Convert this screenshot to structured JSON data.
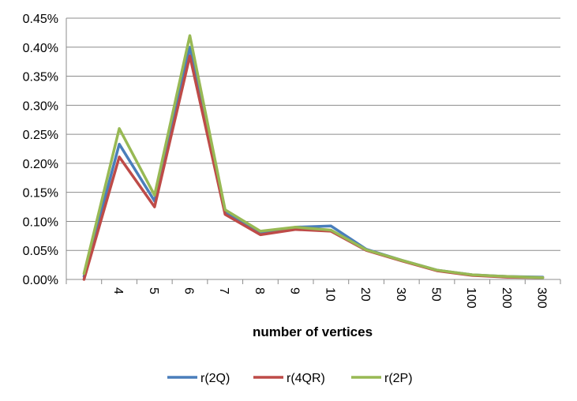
{
  "chart_data": {
    "type": "line",
    "title": "",
    "xlabel": "number of vertices",
    "ylabel": "",
    "categories": [
      "",
      "4",
      "5",
      "6",
      "7",
      "8",
      "9",
      "10",
      "20",
      "30",
      "50",
      "100",
      "200",
      "300"
    ],
    "ylim": [
      0,
      0.45
    ],
    "yticks": [
      "0.00%",
      "0.05%",
      "0.10%",
      "0.15%",
      "0.20%",
      "0.25%",
      "0.30%",
      "0.35%",
      "0.40%",
      "0.45%"
    ],
    "grid": true,
    "legend_position": "bottom",
    "series": [
      {
        "name": "r(2Q)",
        "color": "#4a7ebb",
        "values": [
          0.005,
          0.233,
          0.135,
          0.4,
          0.115,
          0.08,
          0.09,
          0.092,
          0.052,
          0.033,
          0.016,
          0.008,
          0.005,
          0.004
        ]
      },
      {
        "name": "r(4QR)",
        "color": "#be4b48",
        "values": [
          0.0,
          0.211,
          0.125,
          0.385,
          0.112,
          0.077,
          0.086,
          0.083,
          0.05,
          0.032,
          0.015,
          0.007,
          0.004,
          0.003
        ]
      },
      {
        "name": "r(2P)",
        "color": "#98b954",
        "values": [
          0.01,
          0.26,
          0.145,
          0.42,
          0.12,
          0.083,
          0.09,
          0.085,
          0.051,
          0.033,
          0.016,
          0.008,
          0.005,
          0.003
        ]
      }
    ]
  }
}
